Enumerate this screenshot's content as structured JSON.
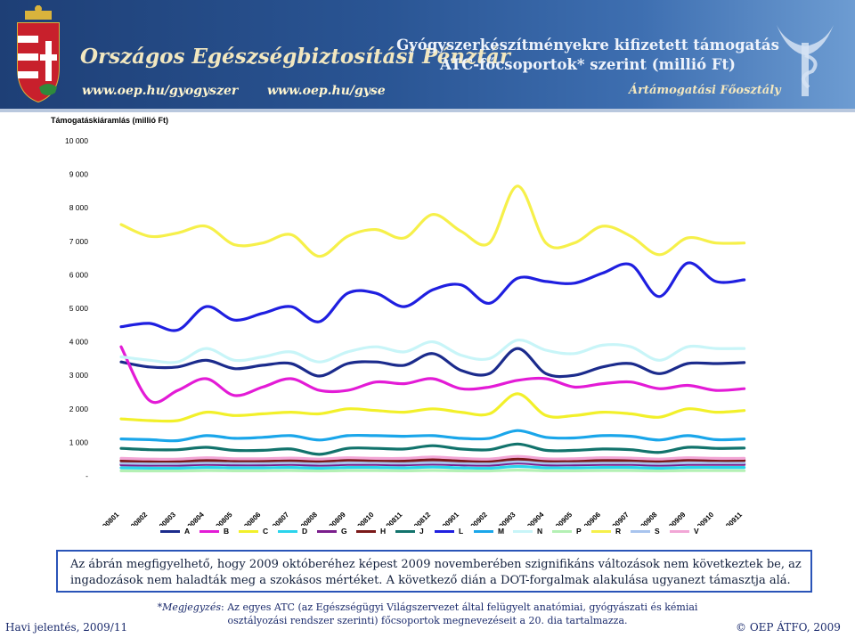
{
  "header": {
    "org_name": "Országos Egészségbiztosítási Pénztár",
    "url_left": "www.oep.hu/gyogyszer",
    "url_right": "www.oep.hu/gyse",
    "slide_title_line1": "Gyógyszerkészítményekre kifizetett támogatás",
    "slide_title_line2": "ATC-főcsoportok* szerint (millió Ft)",
    "department": "Ártámogatási Főosztály",
    "colors": {
      "banner": "#2a5594",
      "title_text": "#eef3fb",
      "org_text": "#f2e7bf"
    }
  },
  "chart_data": {
    "type": "line",
    "title": "Támogatáskiáramlás (millió Ft)",
    "xlabel": "",
    "ylabel": "",
    "ylim": [
      0,
      10000
    ],
    "yticks": [
      0,
      1000,
      2000,
      3000,
      4000,
      5000,
      6000,
      7000,
      8000,
      9000,
      10000
    ],
    "ytick_labels": [
      "-",
      "1 000",
      "2 000",
      "3 000",
      "4 000",
      "5 000",
      "6 000",
      "7 000",
      "8 000",
      "9 000",
      "10 000"
    ],
    "grid": false,
    "legend_position": "bottom",
    "categories": [
      "200801",
      "200802",
      "200803",
      "200804",
      "200805",
      "200806",
      "200807",
      "200808",
      "200809",
      "200810",
      "200811",
      "200812",
      "200901",
      "200902",
      "200903",
      "200904",
      "200905",
      "200906",
      "200907",
      "200908",
      "200909",
      "200910",
      "200911"
    ],
    "series": [
      {
        "name": "A",
        "color": "#1b2b8c",
        "values": [
          3400,
          3250,
          3250,
          3450,
          3200,
          3300,
          3350,
          2980,
          3350,
          3400,
          3300,
          3650,
          3150,
          3050,
          3800,
          3050,
          3000,
          3250,
          3350,
          3050,
          3350,
          3350,
          3380
        ]
      },
      {
        "name": "B",
        "color": "#e31bd6",
        "values": [
          3850,
          2250,
          2550,
          2900,
          2400,
          2650,
          2900,
          2550,
          2550,
          2800,
          2750,
          2900,
          2600,
          2650,
          2850,
          2900,
          2650,
          2750,
          2800,
          2600,
          2700,
          2550,
          2600
        ]
      },
      {
        "name": "C",
        "color": "#f2f02a",
        "values": [
          1700,
          1650,
          1650,
          1900,
          1800,
          1850,
          1900,
          1850,
          2000,
          1950,
          1900,
          2000,
          1900,
          1850,
          2450,
          1800,
          1800,
          1900,
          1850,
          1750,
          2000,
          1900,
          1950
        ]
      },
      {
        "name": "D",
        "color": "#2ad4ec",
        "values": [
          240,
          230,
          230,
          250,
          240,
          240,
          250,
          230,
          250,
          250,
          240,
          260,
          240,
          230,
          280,
          240,
          240,
          250,
          250,
          230,
          250,
          250,
          250
        ]
      },
      {
        "name": "G",
        "color": "#7a1e8c",
        "values": [
          330,
          320,
          320,
          340,
          330,
          330,
          340,
          320,
          340,
          340,
          330,
          350,
          330,
          320,
          380,
          330,
          330,
          340,
          340,
          320,
          340,
          340,
          340
        ]
      },
      {
        "name": "H",
        "color": "#7a1818",
        "values": [
          450,
          440,
          440,
          460,
          450,
          450,
          460,
          440,
          470,
          460,
          450,
          480,
          450,
          440,
          500,
          450,
          450,
          460,
          460,
          440,
          470,
          460,
          460
        ]
      },
      {
        "name": "J",
        "color": "#12736c",
        "values": [
          820,
          780,
          780,
          850,
          760,
          760,
          800,
          640,
          820,
          820,
          800,
          900,
          800,
          780,
          950,
          760,
          760,
          800,
          780,
          700,
          850,
          820,
          830
        ]
      },
      {
        "name": "L",
        "color": "#1f1fe0",
        "values": [
          4450,
          4550,
          4350,
          5050,
          4650,
          4850,
          5050,
          4600,
          5450,
          5450,
          5050,
          5550,
          5700,
          5150,
          5900,
          5800,
          5750,
          6050,
          6300,
          5350,
          6350,
          5800,
          5850
        ]
      },
      {
        "name": "M",
        "color": "#1aa6ea",
        "values": [
          1100,
          1080,
          1050,
          1200,
          1120,
          1150,
          1200,
          1070,
          1200,
          1200,
          1180,
          1200,
          1120,
          1120,
          1350,
          1150,
          1130,
          1200,
          1180,
          1070,
          1200,
          1080,
          1100
        ]
      },
      {
        "name": "N",
        "color": "#c8f5f8",
        "values": [
          3550,
          3450,
          3400,
          3800,
          3450,
          3550,
          3700,
          3400,
          3700,
          3850,
          3700,
          4000,
          3600,
          3500,
          4050,
          3750,
          3650,
          3900,
          3850,
          3450,
          3850,
          3800,
          3800
        ]
      },
      {
        "name": "P",
        "color": "#b4f0b4",
        "values": [
          150,
          145,
          145,
          155,
          150,
          150,
          155,
          145,
          155,
          155,
          150,
          160,
          150,
          145,
          170,
          150,
          150,
          155,
          155,
          145,
          155,
          155,
          155
        ]
      },
      {
        "name": "R",
        "color": "#f6f04a",
        "values": [
          7500,
          7150,
          7250,
          7450,
          6900,
          6950,
          7200,
          6550,
          7150,
          7350,
          7100,
          7800,
          7300,
          6950,
          8650,
          6950,
          6950,
          7450,
          7150,
          6600,
          7100,
          6950,
          6950
        ]
      },
      {
        "name": "S",
        "color": "#a8c4ee",
        "values": [
          380,
          370,
          370,
          390,
          380,
          380,
          390,
          370,
          390,
          390,
          380,
          400,
          380,
          370,
          430,
          380,
          380,
          390,
          390,
          370,
          390,
          390,
          390
        ]
      },
      {
        "name": "V",
        "color": "#f2a6d6",
        "values": [
          520,
          500,
          500,
          540,
          510,
          510,
          530,
          500,
          540,
          520,
          520,
          560,
          520,
          500,
          580,
          510,
          510,
          540,
          530,
          500,
          540,
          520,
          520
        ]
      }
    ]
  },
  "note": "Az ábrán megfigyelhető, hogy 2009 októberéhez képest 2009 novemberében szignifikáns változások nem következtek be, az ingadozások nem haladták meg a szokásos mértéket. A következő dián a  DOT-forgalmak alakulása ugyanezt támasztja alá.",
  "footnote": {
    "label": "*Megjegyzés",
    "text": ": Az egyes ATC (az Egészségügyi Világszervezet által felügyelt anatómiai, gyógyászati és kémiai osztályozási rendszer szerinti) főcsoportok megnevezéseit a 20. dia tartalmazza."
  },
  "footer": {
    "left": "Havi jelentés, 2009/11",
    "right": "© OEP ÁTFO, 2009"
  }
}
